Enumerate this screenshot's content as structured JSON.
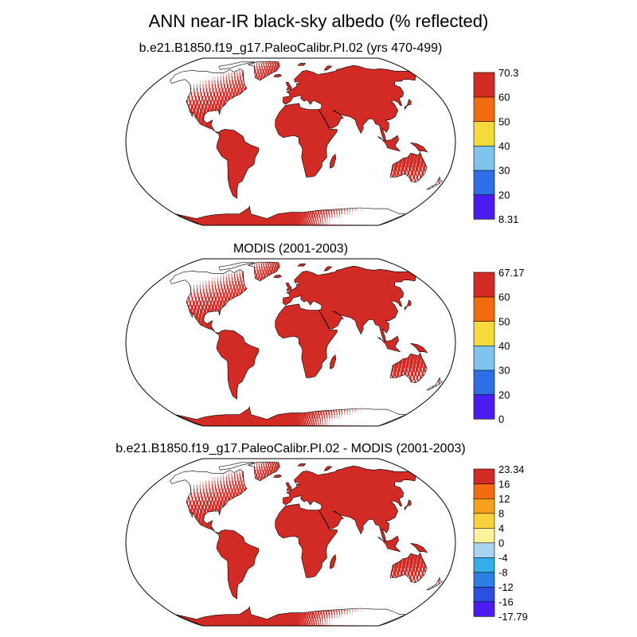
{
  "figure": {
    "title": "ANN near-IR black-sky albedo (% reflected)"
  },
  "colors": {
    "land_seq": [
      "#4a1cf0",
      "#2f6fe6",
      "#7ec4ee",
      "#f5da3c",
      "#f26b10",
      "#d22a24"
    ],
    "land_diff": [
      "#4a1cf0",
      "#2c4fe0",
      "#2d7fe6",
      "#33aee8",
      "#a8d4f0",
      "#fff29a",
      "#f8d23a",
      "#f6a020",
      "#f26b10",
      "#d22a24"
    ],
    "coast": "#000000",
    "outline": "#000000"
  },
  "chart_data": [
    {
      "type": "heatmap",
      "projection": "robinson",
      "title": "b.e21.B1850.f19_g17.PaleoCalibr.PI.02 (yrs 470-499)",
      "colorbar": {
        "labels": [
          "8.31",
          "20",
          "30",
          "40",
          "50",
          "60",
          "70.3"
        ],
        "levels": [
          8.31,
          20,
          30,
          40,
          50,
          60,
          70.3
        ]
      }
    },
    {
      "type": "heatmap",
      "projection": "robinson",
      "title": "MODIS (2001-2003)",
      "colorbar": {
        "labels": [
          "0",
          "20",
          "30",
          "40",
          "50",
          "60",
          "67.17"
        ],
        "levels": [
          0,
          20,
          30,
          40,
          50,
          60,
          67.17
        ]
      }
    },
    {
      "type": "heatmap",
      "projection": "robinson",
      "title": "b.e21.B1850.f19_g17.PaleoCalibr.PI.02 - MODIS (2001-2003)",
      "colorbar": {
        "labels": [
          "-17.79",
          "-16",
          "-12",
          "-8",
          "-4",
          "0",
          "4",
          "8",
          "12",
          "16",
          "23.34"
        ],
        "levels": [
          -17.79,
          -16,
          -12,
          -8,
          -4,
          0,
          4,
          8,
          12,
          16,
          23.34
        ]
      }
    }
  ]
}
